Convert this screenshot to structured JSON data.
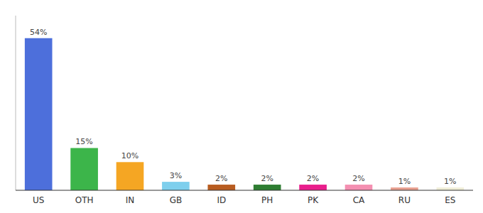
{
  "chart_data": {
    "type": "bar",
    "categories": [
      "US",
      "OTH",
      "IN",
      "GB",
      "ID",
      "PH",
      "PK",
      "CA",
      "RU",
      "ES"
    ],
    "values": [
      54,
      15,
      10,
      3,
      2,
      2,
      2,
      2,
      1,
      1
    ],
    "value_labels": [
      "54%",
      "15%",
      "10%",
      "3%",
      "2%",
      "2%",
      "2%",
      "2%",
      "1%",
      "1%"
    ],
    "colors": [
      "#4d6fdb",
      "#3cb54a",
      "#f5a623",
      "#7ecfed",
      "#b85c20",
      "#2e7d32",
      "#e91e8c",
      "#f48fb1",
      "#e8a090",
      "#f0eed8"
    ],
    "ylim": [
      0,
      62
    ],
    "data_labels": true,
    "tick_labels": "x"
  }
}
